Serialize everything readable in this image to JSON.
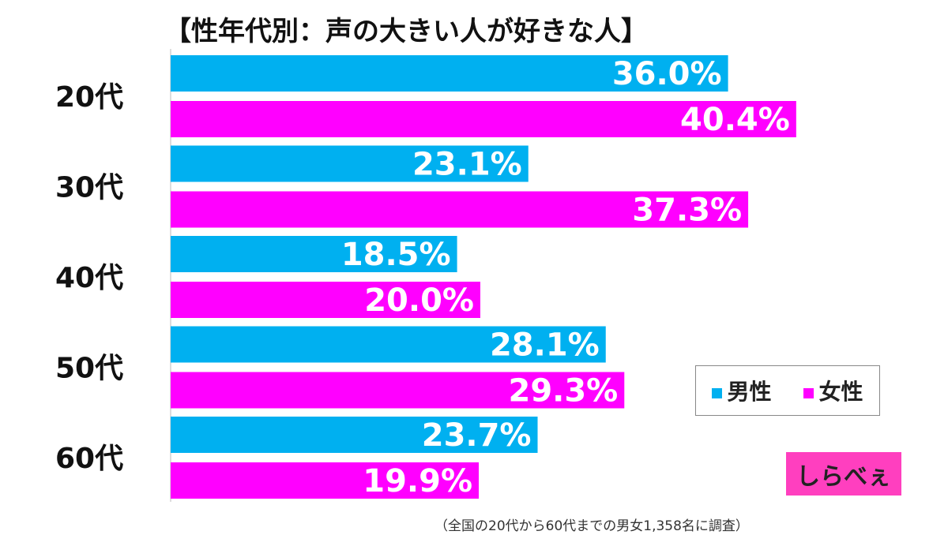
{
  "chart_data": {
    "type": "bar",
    "orientation": "horizontal",
    "title": "【性年代別：声の大きい人が好きな人】",
    "categories": [
      "20代",
      "30代",
      "40代",
      "50代",
      "60代"
    ],
    "series": [
      {
        "name": "男性",
        "color": "#00b0f0",
        "values": [
          36.0,
          23.1,
          18.5,
          28.1,
          23.7
        ]
      },
      {
        "name": "女性",
        "color": "#ff00ff",
        "values": [
          40.4,
          37.3,
          20.0,
          29.3,
          19.9
        ]
      }
    ],
    "value_suffix": "%",
    "xlim": [
      0,
      50
    ],
    "legend": "bottom-right",
    "grid": false
  },
  "logo": {
    "text": "しらべぇ"
  },
  "footnote": "（全国の20代から60代までの男女1,358名に調査）"
}
